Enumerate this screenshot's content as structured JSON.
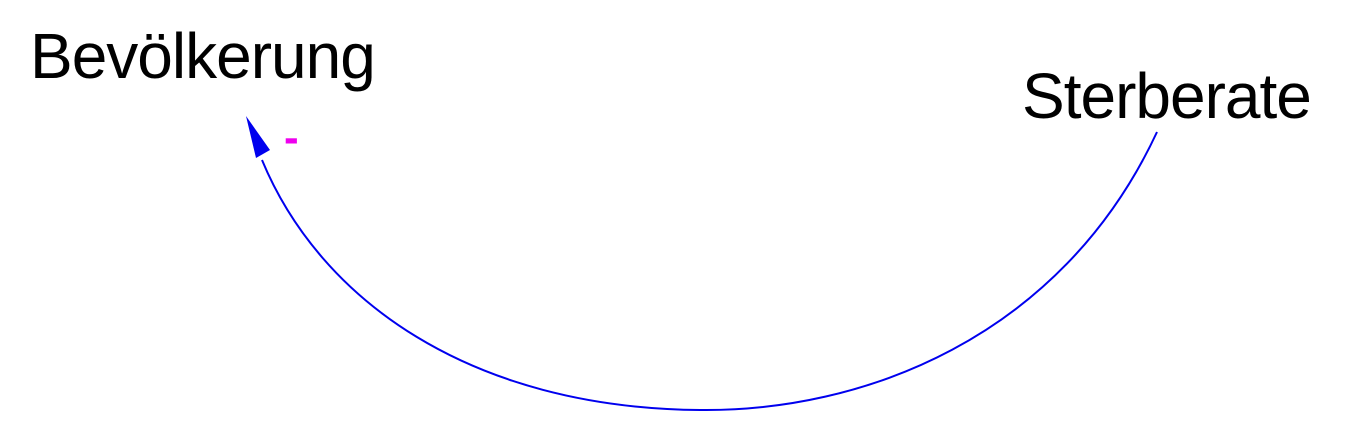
{
  "diagram": {
    "nodes": {
      "population": {
        "label": "Bevölkerung"
      },
      "death_rate": {
        "label": "Sterberate"
      }
    },
    "links": [
      {
        "from": "death_rate",
        "to": "population",
        "polarity": "-",
        "color": "#0000ee",
        "polarity_color": "#ee00ee"
      }
    ]
  }
}
